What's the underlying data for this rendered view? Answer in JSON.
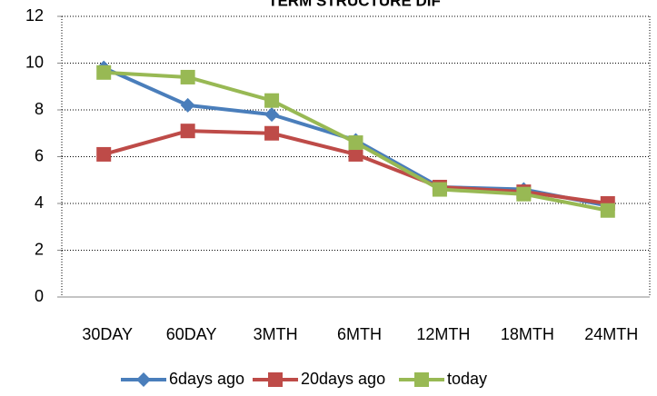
{
  "chart_data": {
    "type": "line",
    "title": "TERM STRUCTURE DIF",
    "categories": [
      "30DAY",
      "60DAY",
      "3MTH",
      "6MTH",
      "12MTH",
      "18MTH",
      "24MTH"
    ],
    "series": [
      {
        "name": "6days ago",
        "color": "#4a7ebb",
        "marker": "diamond",
        "values": [
          9.8,
          8.2,
          7.8,
          6.7,
          4.7,
          4.6,
          3.9
        ]
      },
      {
        "name": "20days ago",
        "color": "#be4b48",
        "marker": "square",
        "values": [
          6.1,
          7.1,
          7.0,
          6.1,
          4.7,
          4.5,
          4.0
        ]
      },
      {
        "name": "today",
        "color": "#98b954",
        "marker": "square",
        "values": [
          9.6,
          9.4,
          8.4,
          6.6,
          4.6,
          4.4,
          3.7
        ]
      }
    ],
    "ylim": [
      0,
      12
    ],
    "yticks": [
      0,
      2,
      4,
      6,
      8,
      10,
      12
    ],
    "grid": true,
    "legend": "bottom"
  }
}
